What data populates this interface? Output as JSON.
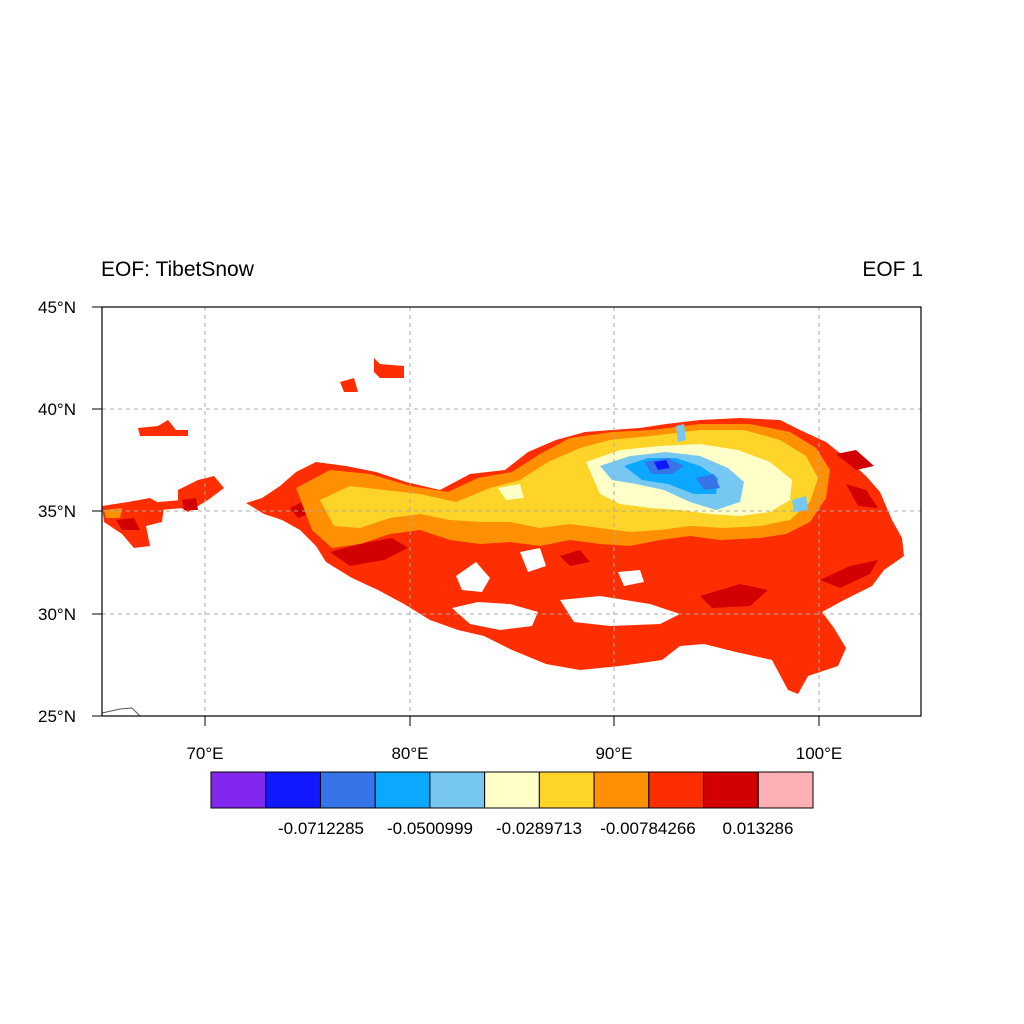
{
  "titles": {
    "left": "EOF: TibetSnow",
    "right": "EOF 1"
  },
  "lat_ticks": [
    "25°N",
    "30°N",
    "35°N",
    "40°N",
    "45°N"
  ],
  "lon_ticks": [
    "70°E",
    "80°E",
    "90°E",
    "100°E"
  ],
  "colorbar": {
    "colors": [
      "#8228ee",
      "#1018ff",
      "#3675e8",
      "#0aa8ff",
      "#76c8f2",
      "#ffffc8",
      "#ffd428",
      "#ff9004",
      "#ff2e00",
      "#d20000",
      "#ffb0b4"
    ],
    "labels": [
      "-0.0712285",
      "-0.0500999",
      "-0.0289713",
      "-0.00784266",
      "0.013286"
    ]
  }
}
